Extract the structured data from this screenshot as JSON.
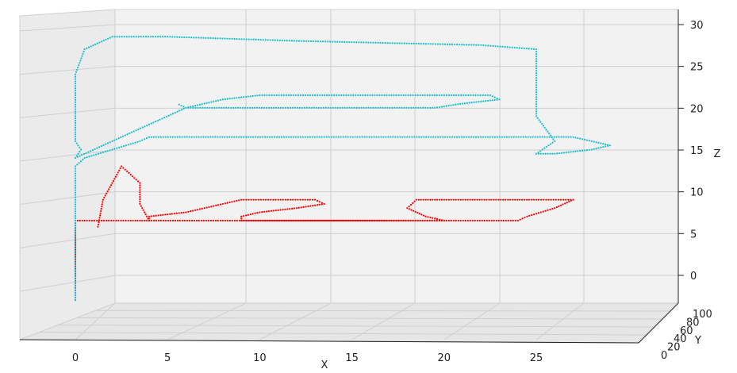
{
  "chart_data": {
    "type": "scatter",
    "projection": "3d",
    "xlabel": "X",
    "ylabel": "Y",
    "zlabel": "Z",
    "xlim": [
      -3,
      30
    ],
    "ylim": [
      0,
      100
    ],
    "zlim": [
      -2,
      32
    ],
    "grid": true,
    "x_ticks": [
      "0",
      "5",
      "10",
      "15",
      "20",
      "25"
    ],
    "y_ticks": [
      "0",
      "20",
      "40",
      "60",
      "80",
      "100"
    ],
    "z_ticks": [
      "0",
      "5",
      "10",
      "15",
      "20",
      "25",
      "30"
    ],
    "colors": {
      "red_series": "#ff0000",
      "cyan_series": "#17becf"
    },
    "series": [
      {
        "color": "red",
        "points": [
          [
            0,
            0,
            -2
          ],
          [
            0,
            0,
            4
          ],
          [
            0,
            0,
            7.5
          ],
          [
            0.5,
            0,
            7.5
          ],
          [
            3,
            0,
            7.5
          ],
          [
            4,
            0,
            7.5
          ],
          [
            4,
            0,
            8
          ],
          [
            6,
            0,
            8.5
          ],
          [
            8,
            0,
            9.5
          ],
          [
            9,
            0,
            10
          ],
          [
            11,
            0,
            10
          ],
          [
            13,
            0,
            10
          ],
          [
            13.5,
            0,
            9.5
          ],
          [
            12,
            0,
            9
          ],
          [
            10,
            0,
            8.5
          ],
          [
            9,
            0,
            8
          ],
          [
            9,
            0,
            7.5
          ],
          [
            14,
            0,
            7.5
          ],
          [
            20,
            0,
            7.5
          ],
          [
            19,
            0,
            8
          ],
          [
            18,
            0,
            9
          ],
          [
            18.5,
            0,
            10
          ],
          [
            20,
            0,
            10
          ],
          [
            25,
            0,
            10
          ],
          [
            27,
            0,
            10
          ],
          [
            26,
            0,
            9
          ],
          [
            24.5,
            0,
            8
          ],
          [
            24,
            0,
            7.5
          ],
          [
            4,
            0,
            7.5
          ],
          [
            3.5,
            0,
            9.5
          ],
          [
            3.5,
            0,
            12
          ],
          [
            2.5,
            0,
            14
          ],
          [
            1.5,
            0,
            10
          ],
          [
            1.2,
            0,
            6.5
          ]
        ]
      },
      {
        "color": "cyan",
        "points": [
          [
            0,
            0,
            -2
          ],
          [
            0,
            0,
            5
          ],
          [
            0,
            0,
            10
          ],
          [
            0,
            0,
            14
          ],
          [
            0.5,
            0,
            15
          ],
          [
            2,
            0,
            16
          ],
          [
            3.5,
            0,
            17
          ],
          [
            4,
            0,
            17.5
          ],
          [
            9,
            0,
            17.5
          ],
          [
            18,
            0,
            17.5
          ],
          [
            27,
            0,
            17.5
          ],
          [
            29,
            0,
            16.5
          ],
          [
            28,
            0,
            16
          ],
          [
            26,
            0,
            15.5
          ],
          [
            25,
            0,
            15.5
          ],
          [
            26,
            0,
            17
          ],
          [
            25,
            0,
            20
          ],
          [
            25,
            0,
            28
          ],
          [
            22,
            0,
            28.5
          ],
          [
            12,
            0,
            29
          ],
          [
            5,
            0,
            29.5
          ],
          [
            2,
            0,
            29.5
          ],
          [
            0.5,
            0,
            28
          ],
          [
            0,
            0,
            25
          ],
          [
            0,
            0,
            20
          ],
          [
            0,
            0,
            17
          ],
          [
            0.3,
            0,
            16
          ],
          [
            0,
            0,
            15
          ],
          [
            6,
            0,
            21
          ],
          [
            8,
            0,
            22
          ],
          [
            10,
            0,
            22.5
          ],
          [
            13,
            0,
            22.5
          ],
          [
            20,
            0,
            22.5
          ],
          [
            22.5,
            0,
            22.5
          ],
          [
            23,
            0,
            22
          ],
          [
            21,
            0,
            21.5
          ],
          [
            19.5,
            0,
            21
          ],
          [
            6,
            0,
            21
          ],
          [
            5.5,
            0,
            21.5
          ]
        ]
      }
    ]
  }
}
